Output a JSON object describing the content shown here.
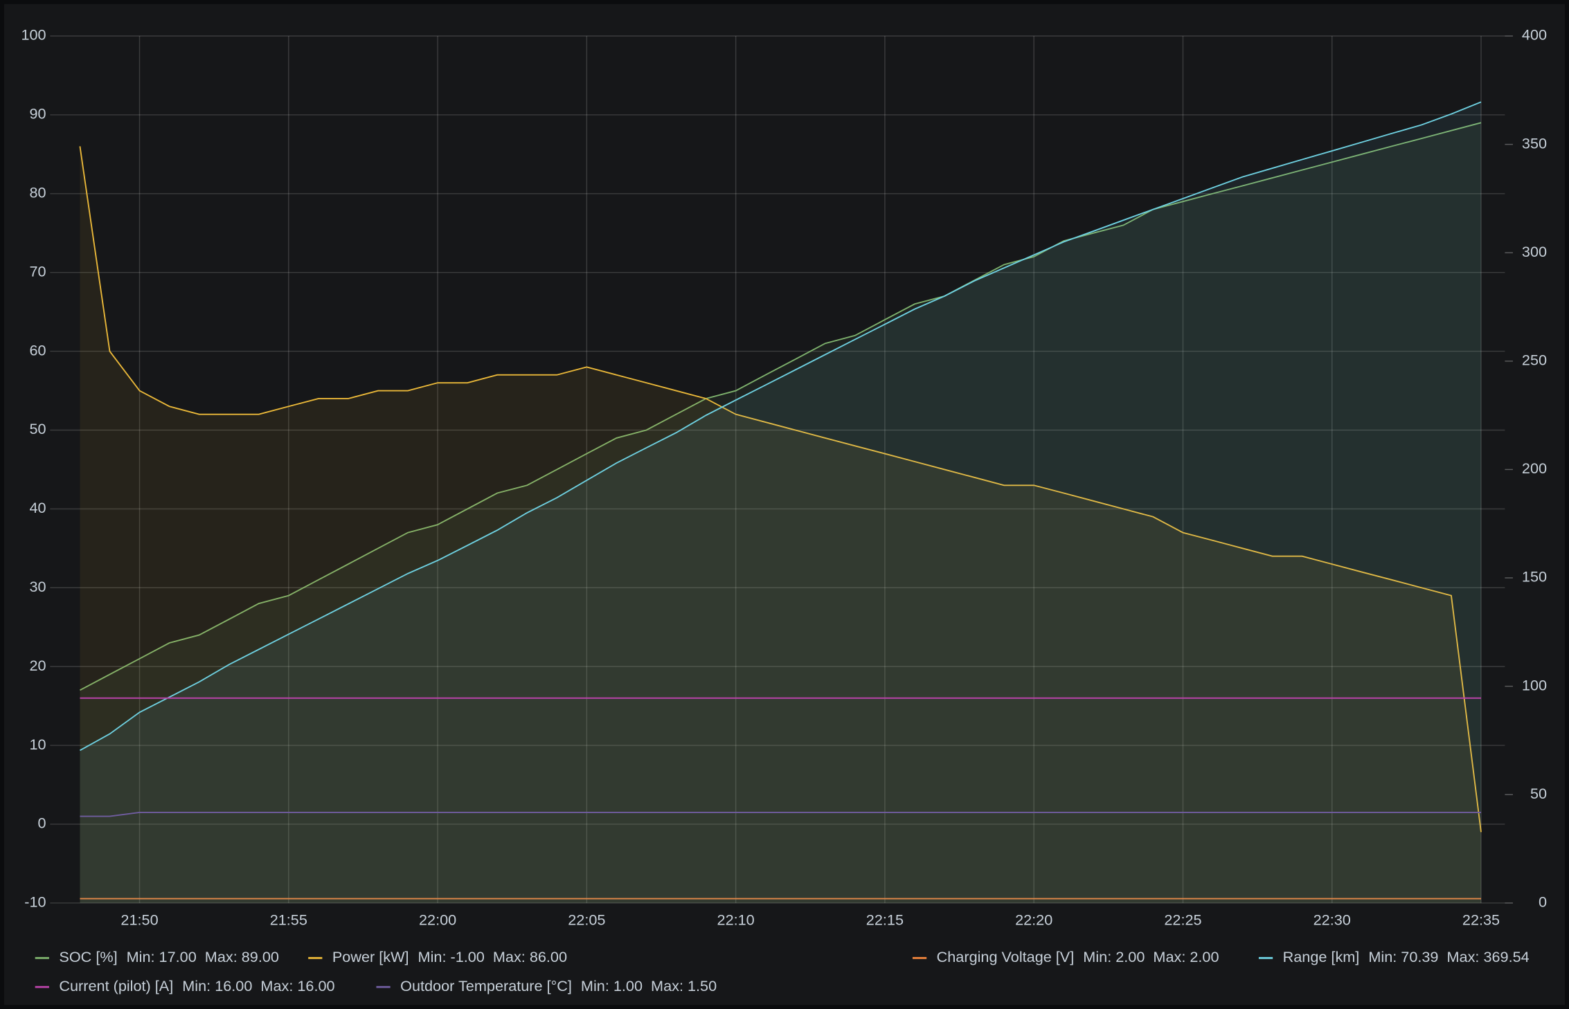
{
  "chart_data": {
    "type": "line",
    "x": [
      "21:48",
      "21:49",
      "21:50",
      "21:51",
      "21:52",
      "21:53",
      "21:54",
      "21:55",
      "21:56",
      "21:57",
      "21:58",
      "21:59",
      "22:00",
      "22:01",
      "22:02",
      "22:03",
      "22:04",
      "22:05",
      "22:06",
      "22:07",
      "22:08",
      "22:09",
      "22:10",
      "22:11",
      "22:12",
      "22:13",
      "22:14",
      "22:15",
      "22:16",
      "22:17",
      "22:18",
      "22:19",
      "22:20",
      "22:21",
      "22:22",
      "22:23",
      "22:24",
      "22:25",
      "22:26",
      "22:27",
      "22:28",
      "22:29",
      "22:30",
      "22:31",
      "22:32",
      "22:33",
      "22:34",
      "22:35"
    ],
    "xlim": [
      "21:47",
      "22:36"
    ],
    "xticks": [
      "21:50",
      "21:55",
      "22:00",
      "22:05",
      "22:10",
      "22:15",
      "22:20",
      "22:25",
      "22:30",
      "22:35"
    ],
    "ylim": [
      -10,
      100
    ],
    "yticks": [
      -10,
      0,
      10,
      20,
      30,
      40,
      50,
      60,
      70,
      80,
      90,
      100
    ],
    "y2lim": [
      0,
      400
    ],
    "y2ticks": [
      0,
      50,
      100,
      150,
      200,
      250,
      300,
      350,
      400
    ],
    "grid": true,
    "series": [
      {
        "name": "SOC [%]",
        "stats": "Min: 17.00  Max: 89.00",
        "color": "#7eb26d",
        "fill": true,
        "values": [
          17,
          19,
          21,
          23,
          24,
          26,
          28,
          29,
          31,
          33,
          35,
          37,
          38,
          40,
          42,
          43,
          45,
          47,
          49,
          50,
          52,
          54,
          55,
          57,
          59,
          61,
          62,
          64,
          66,
          67,
          69,
          71,
          72,
          74,
          75,
          76,
          78,
          79,
          80,
          81,
          82,
          83,
          84,
          85,
          86,
          87,
          88,
          89
        ]
      },
      {
        "name": "Power [kW]",
        "stats": "Min: -1.00  Max: 86.00",
        "color": "#eab839",
        "fill": true,
        "values": [
          86,
          60,
          55,
          53,
          52,
          52,
          52,
          53,
          54,
          54,
          55,
          55,
          56,
          56,
          57,
          57,
          57,
          58,
          57,
          56,
          55,
          54,
          52,
          51,
          50,
          49,
          48,
          47,
          46,
          45,
          44,
          43,
          43,
          42,
          41,
          40,
          39,
          37,
          36,
          35,
          34,
          34,
          33,
          32,
          31,
          30,
          29,
          -1
        ]
      },
      {
        "name": "Charging Voltage [V]",
        "stats": "Min: 2.00  Max: 2.00",
        "color": "#ef843c",
        "axis": "y2",
        "values": [
          2,
          2,
          2,
          2,
          2,
          2,
          2,
          2,
          2,
          2,
          2,
          2,
          2,
          2,
          2,
          2,
          2,
          2,
          2,
          2,
          2,
          2,
          2,
          2,
          2,
          2,
          2,
          2,
          2,
          2,
          2,
          2,
          2,
          2,
          2,
          2,
          2,
          2,
          2,
          2,
          2,
          2,
          2,
          2,
          2,
          2,
          2,
          2
        ]
      },
      {
        "name": "Range [km]",
        "stats": "Min: 70.39  Max: 369.54",
        "color": "#6ed0e0",
        "axis": "y2",
        "fill": true,
        "values": [
          70.39,
          78,
          88,
          95,
          102,
          110,
          117,
          124,
          131,
          138,
          145,
          152,
          158,
          165,
          172,
          180,
          187,
          195,
          203,
          210,
          217,
          225,
          232,
          239,
          246,
          253,
          260,
          267,
          274,
          280,
          287,
          293,
          299,
          305,
          310,
          315,
          320,
          325,
          330,
          335,
          339,
          343,
          347,
          351,
          355,
          359,
          364,
          369.54
        ]
      },
      {
        "name": "Current (pilot) [A]",
        "stats": "Min: 16.00  Max: 16.00",
        "color": "#ba43a9",
        "values": [
          16,
          16,
          16,
          16,
          16,
          16,
          16,
          16,
          16,
          16,
          16,
          16,
          16,
          16,
          16,
          16,
          16,
          16,
          16,
          16,
          16,
          16,
          16,
          16,
          16,
          16,
          16,
          16,
          16,
          16,
          16,
          16,
          16,
          16,
          16,
          16,
          16,
          16,
          16,
          16,
          16,
          16,
          16,
          16,
          16,
          16,
          16,
          16
        ]
      },
      {
        "name": "Outdoor Temperature [°C]",
        "stats": "Min: 1.00  Max: 1.50",
        "color": "#705da0",
        "values": [
          1,
          1,
          1.5,
          1.5,
          1.5,
          1.5,
          1.5,
          1.5,
          1.5,
          1.5,
          1.5,
          1.5,
          1.5,
          1.5,
          1.5,
          1.5,
          1.5,
          1.5,
          1.5,
          1.5,
          1.5,
          1.5,
          1.5,
          1.5,
          1.5,
          1.5,
          1.5,
          1.5,
          1.5,
          1.5,
          1.5,
          1.5,
          1.5,
          1.5,
          1.5,
          1.5,
          1.5,
          1.5,
          1.5,
          1.5,
          1.5,
          1.5,
          1.5,
          1.5,
          1.5,
          1.5,
          1.5,
          1.5
        ]
      }
    ]
  }
}
